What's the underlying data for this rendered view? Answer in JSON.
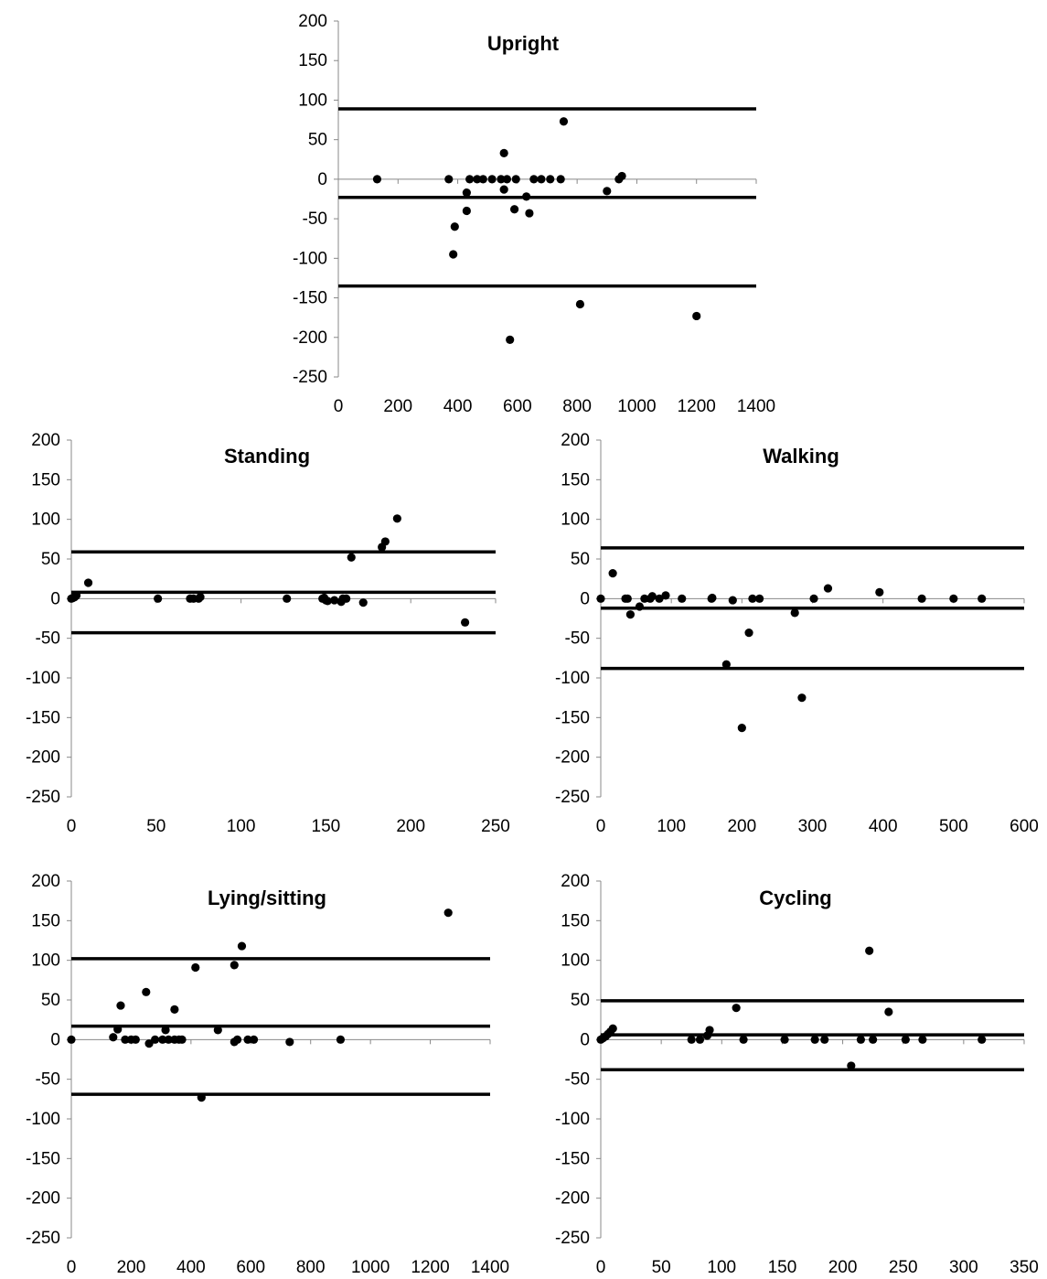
{
  "chart_data": [
    {
      "type": "scatter",
      "title": "Upright",
      "xlabel": "",
      "ylabel": "",
      "xlim": [
        0,
        1400
      ],
      "ylim": [
        -250,
        200
      ],
      "x_ticks": [
        "0",
        "200",
        "400",
        "600",
        "800",
        "1000",
        "1200",
        "1400"
      ],
      "y_ticks": [
        "-250",
        "-200",
        "-150",
        "-100",
        "-50",
        "0",
        "50",
        "100",
        "150",
        "200"
      ],
      "grid": false,
      "legend": "none",
      "reference_lines": [
        89,
        -23,
        -135
      ],
      "points": [
        [
          130,
          0
        ],
        [
          370,
          0
        ],
        [
          390,
          -60
        ],
        [
          385,
          -95
        ],
        [
          430,
          -17
        ],
        [
          430,
          -40
        ],
        [
          440,
          0
        ],
        [
          465,
          0
        ],
        [
          485,
          0
        ],
        [
          515,
          0
        ],
        [
          545,
          0
        ],
        [
          555,
          33
        ],
        [
          555,
          -13
        ],
        [
          565,
          0
        ],
        [
          575,
          -203
        ],
        [
          590,
          -38
        ],
        [
          595,
          0
        ],
        [
          630,
          -22
        ],
        [
          640,
          -43
        ],
        [
          655,
          0
        ],
        [
          680,
          0
        ],
        [
          710,
          0
        ],
        [
          745,
          0
        ],
        [
          755,
          73
        ],
        [
          810,
          -158
        ],
        [
          900,
          -15
        ],
        [
          940,
          0
        ],
        [
          950,
          4
        ],
        [
          1200,
          -173
        ]
      ]
    },
    {
      "type": "scatter",
      "title": "Standing",
      "xlabel": "",
      "ylabel": "",
      "xlim": [
        0,
        250
      ],
      "ylim": [
        -250,
        200
      ],
      "x_ticks": [
        "0",
        "50",
        "100",
        "150",
        "200",
        "250"
      ],
      "y_ticks": [
        "-250",
        "-200",
        "-150",
        "-100",
        "-50",
        "0",
        "50",
        "100",
        "150",
        "200"
      ],
      "grid": false,
      "legend": "none",
      "reference_lines": [
        59,
        8,
        -43
      ],
      "points": [
        [
          0,
          0
        ],
        [
          1,
          1
        ],
        [
          2,
          2
        ],
        [
          3,
          4
        ],
        [
          10,
          20
        ],
        [
          51,
          0
        ],
        [
          70,
          0
        ],
        [
          72,
          0
        ],
        [
          75,
          0
        ],
        [
          76,
          2
        ],
        [
          127,
          0
        ],
        [
          148,
          0
        ],
        [
          149,
          1
        ],
        [
          150,
          -2
        ],
        [
          151,
          -3
        ],
        [
          155,
          -2
        ],
        [
          159,
          -4
        ],
        [
          160,
          0
        ],
        [
          162,
          0
        ],
        [
          165,
          52
        ],
        [
          172,
          -5
        ],
        [
          183,
          65
        ],
        [
          185,
          72
        ],
        [
          192,
          101
        ],
        [
          232,
          -30
        ]
      ]
    },
    {
      "type": "scatter",
      "title": "Walking",
      "xlabel": "",
      "ylabel": "",
      "xlim": [
        0,
        600
      ],
      "ylim": [
        -250,
        200
      ],
      "x_ticks": [
        "0",
        "100",
        "200",
        "300",
        "400",
        "500",
        "600"
      ],
      "y_ticks": [
        "-250",
        "-200",
        "-150",
        "-100",
        "-50",
        "0",
        "50",
        "100",
        "150",
        "200"
      ],
      "grid": false,
      "legend": "none",
      "reference_lines": [
        64,
        -12,
        -88
      ],
      "points": [
        [
          0,
          0
        ],
        [
          17,
          32
        ],
        [
          35,
          0
        ],
        [
          38,
          0
        ],
        [
          42,
          -20
        ],
        [
          55,
          -10
        ],
        [
          62,
          0
        ],
        [
          70,
          0
        ],
        [
          73,
          3
        ],
        [
          83,
          0
        ],
        [
          92,
          4
        ],
        [
          115,
          0
        ],
        [
          157,
          0
        ],
        [
          158,
          1
        ],
        [
          178,
          -83
        ],
        [
          187,
          -2
        ],
        [
          200,
          -163
        ],
        [
          210,
          -43
        ],
        [
          215,
          0
        ],
        [
          225,
          0
        ],
        [
          275,
          -18
        ],
        [
          285,
          -125
        ],
        [
          302,
          0
        ],
        [
          322,
          13
        ],
        [
          395,
          8
        ],
        [
          455,
          0
        ],
        [
          500,
          0
        ],
        [
          540,
          0
        ]
      ]
    },
    {
      "type": "scatter",
      "title": "Lying/sitting",
      "xlabel": "",
      "ylabel": "",
      "xlim": [
        0,
        1400
      ],
      "ylim": [
        -250,
        200
      ],
      "x_ticks": [
        "0",
        "200",
        "400",
        "600",
        "800",
        "1000",
        "1200",
        "1400"
      ],
      "y_ticks": [
        "-250",
        "-200",
        "-150",
        "-100",
        "-50",
        "0",
        "50",
        "100",
        "150",
        "200"
      ],
      "grid": false,
      "legend": "none",
      "reference_lines": [
        102,
        17,
        -69
      ],
      "points": [
        [
          0,
          0
        ],
        [
          140,
          3
        ],
        [
          155,
          13
        ],
        [
          165,
          43
        ],
        [
          180,
          0
        ],
        [
          200,
          0
        ],
        [
          215,
          0
        ],
        [
          250,
          60
        ],
        [
          260,
          -5
        ],
        [
          280,
          0
        ],
        [
          305,
          0
        ],
        [
          315,
          12
        ],
        [
          325,
          0
        ],
        [
          345,
          38
        ],
        [
          345,
          0
        ],
        [
          360,
          0
        ],
        [
          370,
          0
        ],
        [
          415,
          91
        ],
        [
          435,
          -73
        ],
        [
          490,
          12
        ],
        [
          545,
          94
        ],
        [
          545,
          -3
        ],
        [
          555,
          0
        ],
        [
          570,
          118
        ],
        [
          590,
          0
        ],
        [
          610,
          0
        ],
        [
          730,
          -3
        ],
        [
          900,
          0
        ],
        [
          1260,
          160
        ]
      ]
    },
    {
      "type": "scatter",
      "title": "Cycling",
      "xlabel": "",
      "ylabel": "",
      "xlim": [
        0,
        350
      ],
      "ylim": [
        -250,
        200
      ],
      "x_ticks": [
        "0",
        "50",
        "100",
        "150",
        "200",
        "250",
        "300",
        "350"
      ],
      "y_ticks": [
        "-250",
        "-200",
        "-150",
        "-100",
        "-50",
        "0",
        "50",
        "100",
        "150",
        "200"
      ],
      "grid": false,
      "legend": "none",
      "reference_lines": [
        49,
        6,
        -38
      ],
      "points": [
        [
          0,
          0
        ],
        [
          2,
          2
        ],
        [
          4,
          4
        ],
        [
          6,
          7
        ],
        [
          8,
          10
        ],
        [
          10,
          14
        ],
        [
          75,
          0
        ],
        [
          82,
          0
        ],
        [
          88,
          5
        ],
        [
          90,
          12
        ],
        [
          112,
          40
        ],
        [
          118,
          0
        ],
        [
          152,
          0
        ],
        [
          177,
          0
        ],
        [
          185,
          0
        ],
        [
          207,
          -33
        ],
        [
          215,
          0
        ],
        [
          222,
          112
        ],
        [
          225,
          0
        ],
        [
          238,
          35
        ],
        [
          252,
          0
        ],
        [
          266,
          0
        ],
        [
          315,
          0
        ]
      ]
    }
  ]
}
